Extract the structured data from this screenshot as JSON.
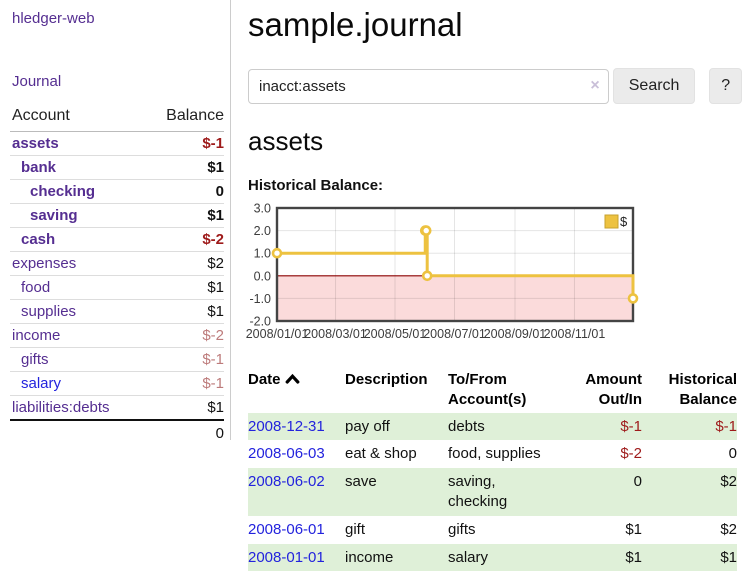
{
  "app": {
    "title": "hledger-web",
    "nav": {
      "journal": "Journal"
    }
  },
  "sidebar": {
    "accounts_table": {
      "headers": {
        "account": "Account",
        "balance": "Balance"
      },
      "accounts": [
        {
          "name": "assets",
          "indent": 0,
          "bold": true,
          "balance": "$-1",
          "balance_tone": "neg-strong",
          "link_tone": "purple"
        },
        {
          "name": "bank",
          "indent": 1,
          "bold": true,
          "balance": "$1",
          "balance_tone": "",
          "link_tone": "purple"
        },
        {
          "name": "checking",
          "indent": 2,
          "bold": true,
          "balance": "0",
          "balance_tone": "",
          "link_tone": "purple"
        },
        {
          "name": "saving",
          "indent": 2,
          "bold": true,
          "balance": "$1",
          "balance_tone": "",
          "link_tone": "purple"
        },
        {
          "name": "cash",
          "indent": 1,
          "bold": true,
          "balance": "$-2",
          "balance_tone": "neg-strong",
          "link_tone": "purple"
        },
        {
          "name": "expenses",
          "indent": 0,
          "bold": false,
          "balance": "$2",
          "balance_tone": "",
          "link_tone": "purple"
        },
        {
          "name": "food",
          "indent": 1,
          "bold": false,
          "balance": "$1",
          "balance_tone": "",
          "link_tone": "purple"
        },
        {
          "name": "supplies",
          "indent": 1,
          "bold": false,
          "balance": "$1",
          "balance_tone": "",
          "link_tone": "purple"
        },
        {
          "name": "income",
          "indent": 0,
          "bold": false,
          "balance": "$-2",
          "balance_tone": "neg-soft",
          "link_tone": "purple"
        },
        {
          "name": "gifts",
          "indent": 1,
          "bold": false,
          "balance": "$-1",
          "balance_tone": "neg-soft",
          "link_tone": "purple"
        },
        {
          "name": "salary",
          "indent": 1,
          "bold": false,
          "balance": "$-1",
          "balance_tone": "neg-soft",
          "link_tone": "blue"
        },
        {
          "name": "liabilities:debts",
          "indent": 0,
          "bold": false,
          "balance": "$1",
          "balance_tone": "",
          "link_tone": "purple"
        }
      ],
      "total": "0"
    }
  },
  "header": {
    "title": "sample.journal"
  },
  "search": {
    "value": "inacct:assets",
    "clear_icon": "×",
    "button": "Search",
    "help_button": "?"
  },
  "account_page": {
    "heading": "assets",
    "chart_title": "Historical Balance:"
  },
  "chart_data": {
    "type": "line",
    "subtype": "step",
    "title": "Historical Balance:",
    "series": [
      {
        "name": "$",
        "color": "#edc240",
        "points": [
          {
            "date": "2008-01-01",
            "value": 1
          },
          {
            "date": "2008-06-01",
            "value": 2
          },
          {
            "date": "2008-06-02",
            "value": 2
          },
          {
            "date": "2008-06-03",
            "value": 0
          },
          {
            "date": "2008-12-31",
            "value": -1
          }
        ]
      }
    ],
    "x_ticks": [
      "2008/01/01",
      "2008/03/01",
      "2008/05/01",
      "2008/07/01",
      "2008/09/01",
      "2008/11/01"
    ],
    "y_ticks": [
      3.0,
      2.0,
      1.0,
      0.0,
      -1.0,
      -2.0
    ],
    "ylim": [
      -2,
      3
    ],
    "x_start_date": "2008-01-01",
    "x_end_date": "2008-12-31",
    "grid": true,
    "legend": {
      "label": "$",
      "position": "top-right"
    },
    "negative_region_fill": "#fbdbdb",
    "zero_line_color": "#8b0000",
    "border_color": "#444444"
  },
  "register": {
    "headers": {
      "date": "Date",
      "description": "Description",
      "accounts": "To/From Account(s)",
      "amount": "Amount Out/In",
      "balance": "Historical Balance"
    },
    "sort_icon": "chevron-up",
    "rows": [
      {
        "date": "2008-12-31",
        "description": "pay off",
        "accounts": "debts",
        "amount": "$-1",
        "amount_negative": true,
        "balance": "$-1",
        "balance_negative": true
      },
      {
        "date": "2008-06-03",
        "description": "eat & shop",
        "accounts": "food, supplies",
        "amount": "$-2",
        "amount_negative": true,
        "balance": "0",
        "balance_negative": false
      },
      {
        "date": "2008-06-02",
        "description": "save",
        "accounts": "saving, checking",
        "amount": "0",
        "amount_negative": false,
        "balance": "$2",
        "balance_negative": false
      },
      {
        "date": "2008-06-01",
        "description": "gift",
        "accounts": "gifts",
        "amount": "$1",
        "amount_negative": false,
        "balance": "$2",
        "balance_negative": false
      },
      {
        "date": "2008-01-01",
        "description": "income",
        "accounts": "salary",
        "amount": "$1",
        "amount_negative": false,
        "balance": "$1",
        "balance_negative": false
      }
    ]
  },
  "colors": {
    "accent_purple": "#552e91",
    "link_blue": "#2323dd",
    "negative_strong": "#9e1a1a",
    "negative_soft": "#bd7b7b",
    "row_stripe_green": "#dff0d8",
    "chart_series_gold": "#edc240"
  }
}
